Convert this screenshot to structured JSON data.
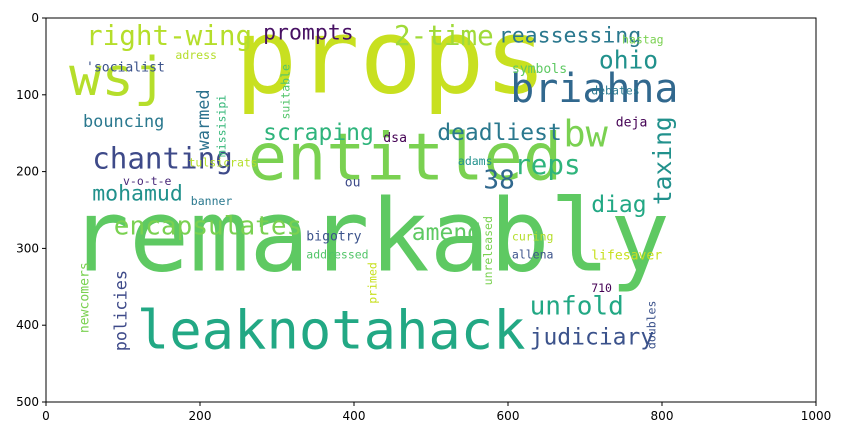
{
  "chart_data": {
    "type": "wordcloud",
    "xlim": [
      0,
      1000
    ],
    "ylim": [
      500,
      0
    ],
    "x_ticks": [
      0,
      200,
      400,
      600,
      800,
      1000
    ],
    "y_ticks": [
      0,
      100,
      200,
      300,
      400,
      500
    ],
    "grid": false,
    "words": [
      {
        "text": "remarkably",
        "x": 30,
        "y": 232,
        "size": 130,
        "color": "#5ec962",
        "vertical": false
      },
      {
        "text": "props",
        "x": 245,
        "y": -2,
        "size": 135,
        "color": "#c8e020",
        "vertical": false
      },
      {
        "text": "entitled",
        "x": 262,
        "y": 148,
        "size": 85,
        "color": "#7ad151",
        "vertical": false
      },
      {
        "text": "leaknotahack",
        "x": 118,
        "y": 378,
        "size": 70,
        "color": "#22a884",
        "vertical": false
      },
      {
        "text": "wsj",
        "x": 30,
        "y": 48,
        "size": 70,
        "color": "#b5de2b",
        "vertical": false
      },
      {
        "text": "briahna",
        "x": 603,
        "y": 72,
        "size": 52,
        "color": "#31688e",
        "vertical": false
      },
      {
        "text": "right-wing",
        "x": 52,
        "y": 8,
        "size": 36,
        "color": "#b5de2b",
        "vertical": false
      },
      {
        "text": "prompts",
        "x": 282,
        "y": 8,
        "size": 28,
        "color": "#471063",
        "vertical": false
      },
      {
        "text": "2-time",
        "x": 452,
        "y": 8,
        "size": 36,
        "color": "#a0da39",
        "vertical": false
      },
      {
        "text": "reassessing",
        "x": 588,
        "y": 12,
        "size": 28,
        "color": "#2a788e",
        "vertical": false
      },
      {
        "text": "ohio",
        "x": 718,
        "y": 42,
        "size": 32,
        "color": "#21918c",
        "vertical": false
      },
      {
        "text": "bw",
        "x": 672,
        "y": 132,
        "size": 48,
        "color": "#7ad151",
        "vertical": false
      },
      {
        "text": "chanting",
        "x": 60,
        "y": 168,
        "size": 38,
        "color": "#3e4a89",
        "vertical": false
      },
      {
        "text": "scraping",
        "x": 282,
        "y": 138,
        "size": 30,
        "color": "#2fb47c",
        "vertical": false
      },
      {
        "text": "deadliest",
        "x": 508,
        "y": 138,
        "size": 30,
        "color": "#2a788e",
        "vertical": false
      },
      {
        "text": "reps",
        "x": 608,
        "y": 176,
        "size": 36,
        "color": "#2fb47c",
        "vertical": false
      },
      {
        "text": "taxing",
        "x": 788,
        "y": 128,
        "size": 32,
        "color": "#21918c",
        "vertical": true
      },
      {
        "text": "38",
        "x": 568,
        "y": 198,
        "size": 34,
        "color": "#31688e",
        "vertical": false
      },
      {
        "text": "mohamud",
        "x": 60,
        "y": 218,
        "size": 28,
        "color": "#21918c",
        "vertical": false
      },
      {
        "text": "encapsulates",
        "x": 88,
        "y": 258,
        "size": 34,
        "color": "#7ad151",
        "vertical": false
      },
      {
        "text": "diag",
        "x": 708,
        "y": 232,
        "size": 30,
        "color": "#22a884",
        "vertical": false
      },
      {
        "text": "amend",
        "x": 475,
        "y": 268,
        "size": 30,
        "color": "#5ec962",
        "vertical": false
      },
      {
        "text": "unfold",
        "x": 628,
        "y": 362,
        "size": 34,
        "color": "#22a884",
        "vertical": false
      },
      {
        "text": "judiciary",
        "x": 628,
        "y": 404,
        "size": 30,
        "color": "#3b528b",
        "vertical": false
      },
      {
        "text": "bouncing",
        "x": 48,
        "y": 125,
        "size": 22,
        "color": "#2a788e",
        "vertical": false
      },
      {
        "text": "warmed",
        "x": 195,
        "y": 93,
        "size": 22,
        "color": "#2c728e",
        "vertical": true
      },
      {
        "text": "missisipi",
        "x": 222,
        "y": 100,
        "size": 15,
        "color": "#35b779",
        "vertical": true
      },
      {
        "text": "suitable",
        "x": 305,
        "y": 60,
        "size": 15,
        "color": "#52c569",
        "vertical": true
      },
      {
        "text": "'socialist",
        "x": 52,
        "y": 58,
        "size": 17,
        "color": "#3b528b",
        "vertical": false
      },
      {
        "text": "adress",
        "x": 168,
        "y": 42,
        "size": 15,
        "color": "#b5de2b",
        "vertical": false
      },
      {
        "text": "symbols",
        "x": 605,
        "y": 60,
        "size": 17,
        "color": "#5ec962",
        "vertical": false
      },
      {
        "text": "hastag",
        "x": 748,
        "y": 22,
        "size": 15,
        "color": "#7ad151",
        "vertical": false
      },
      {
        "text": "debates",
        "x": 708,
        "y": 88,
        "size": 15,
        "color": "#2a788e",
        "vertical": false
      },
      {
        "text": "deja",
        "x": 740,
        "y": 130,
        "size": 17,
        "color": "#440154",
        "vertical": false
      },
      {
        "text": "dsa",
        "x": 438,
        "y": 150,
        "size": 17,
        "color": "#440154",
        "vertical": false
      },
      {
        "text": "adams",
        "x": 535,
        "y": 180,
        "size": 15,
        "color": "#21918c",
        "vertical": false
      },
      {
        "text": "tulsicrats",
        "x": 185,
        "y": 182,
        "size": 15,
        "color": "#b5de2b",
        "vertical": false
      },
      {
        "text": "ou",
        "x": 388,
        "y": 208,
        "size": 17,
        "color": "#3e4a89",
        "vertical": false
      },
      {
        "text": "v-o-t-e",
        "x": 100,
        "y": 206,
        "size": 15,
        "color": "#482878",
        "vertical": false
      },
      {
        "text": "banner",
        "x": 188,
        "y": 232,
        "size": 15,
        "color": "#2a788e",
        "vertical": false
      },
      {
        "text": "bigotry",
        "x": 338,
        "y": 278,
        "size": 17,
        "color": "#3b528b",
        "vertical": false
      },
      {
        "text": "addressed",
        "x": 338,
        "y": 302,
        "size": 15,
        "color": "#52c569",
        "vertical": false
      },
      {
        "text": "curing",
        "x": 605,
        "y": 278,
        "size": 15,
        "color": "#b5de2b",
        "vertical": false
      },
      {
        "text": "allena",
        "x": 605,
        "y": 302,
        "size": 15,
        "color": "#3b528b",
        "vertical": false
      },
      {
        "text": "lifesaver",
        "x": 708,
        "y": 303,
        "size": 17,
        "color": "#c8e020",
        "vertical": false
      },
      {
        "text": "710",
        "x": 708,
        "y": 345,
        "size": 15,
        "color": "#440154",
        "vertical": false
      },
      {
        "text": "doubles",
        "x": 780,
        "y": 368,
        "size": 15,
        "color": "#3b528b",
        "vertical": true
      },
      {
        "text": "unreleased",
        "x": 568,
        "y": 258,
        "size": 15,
        "color": "#7ad151",
        "vertical": true
      },
      {
        "text": "primed",
        "x": 418,
        "y": 318,
        "size": 15,
        "color": "#c8e020",
        "vertical": true
      },
      {
        "text": "policies",
        "x": 88,
        "y": 328,
        "size": 22,
        "color": "#3e4a89",
        "vertical": true
      },
      {
        "text": "newcomers",
        "x": 44,
        "y": 318,
        "size": 17,
        "color": "#7ad151",
        "vertical": true
      }
    ]
  }
}
